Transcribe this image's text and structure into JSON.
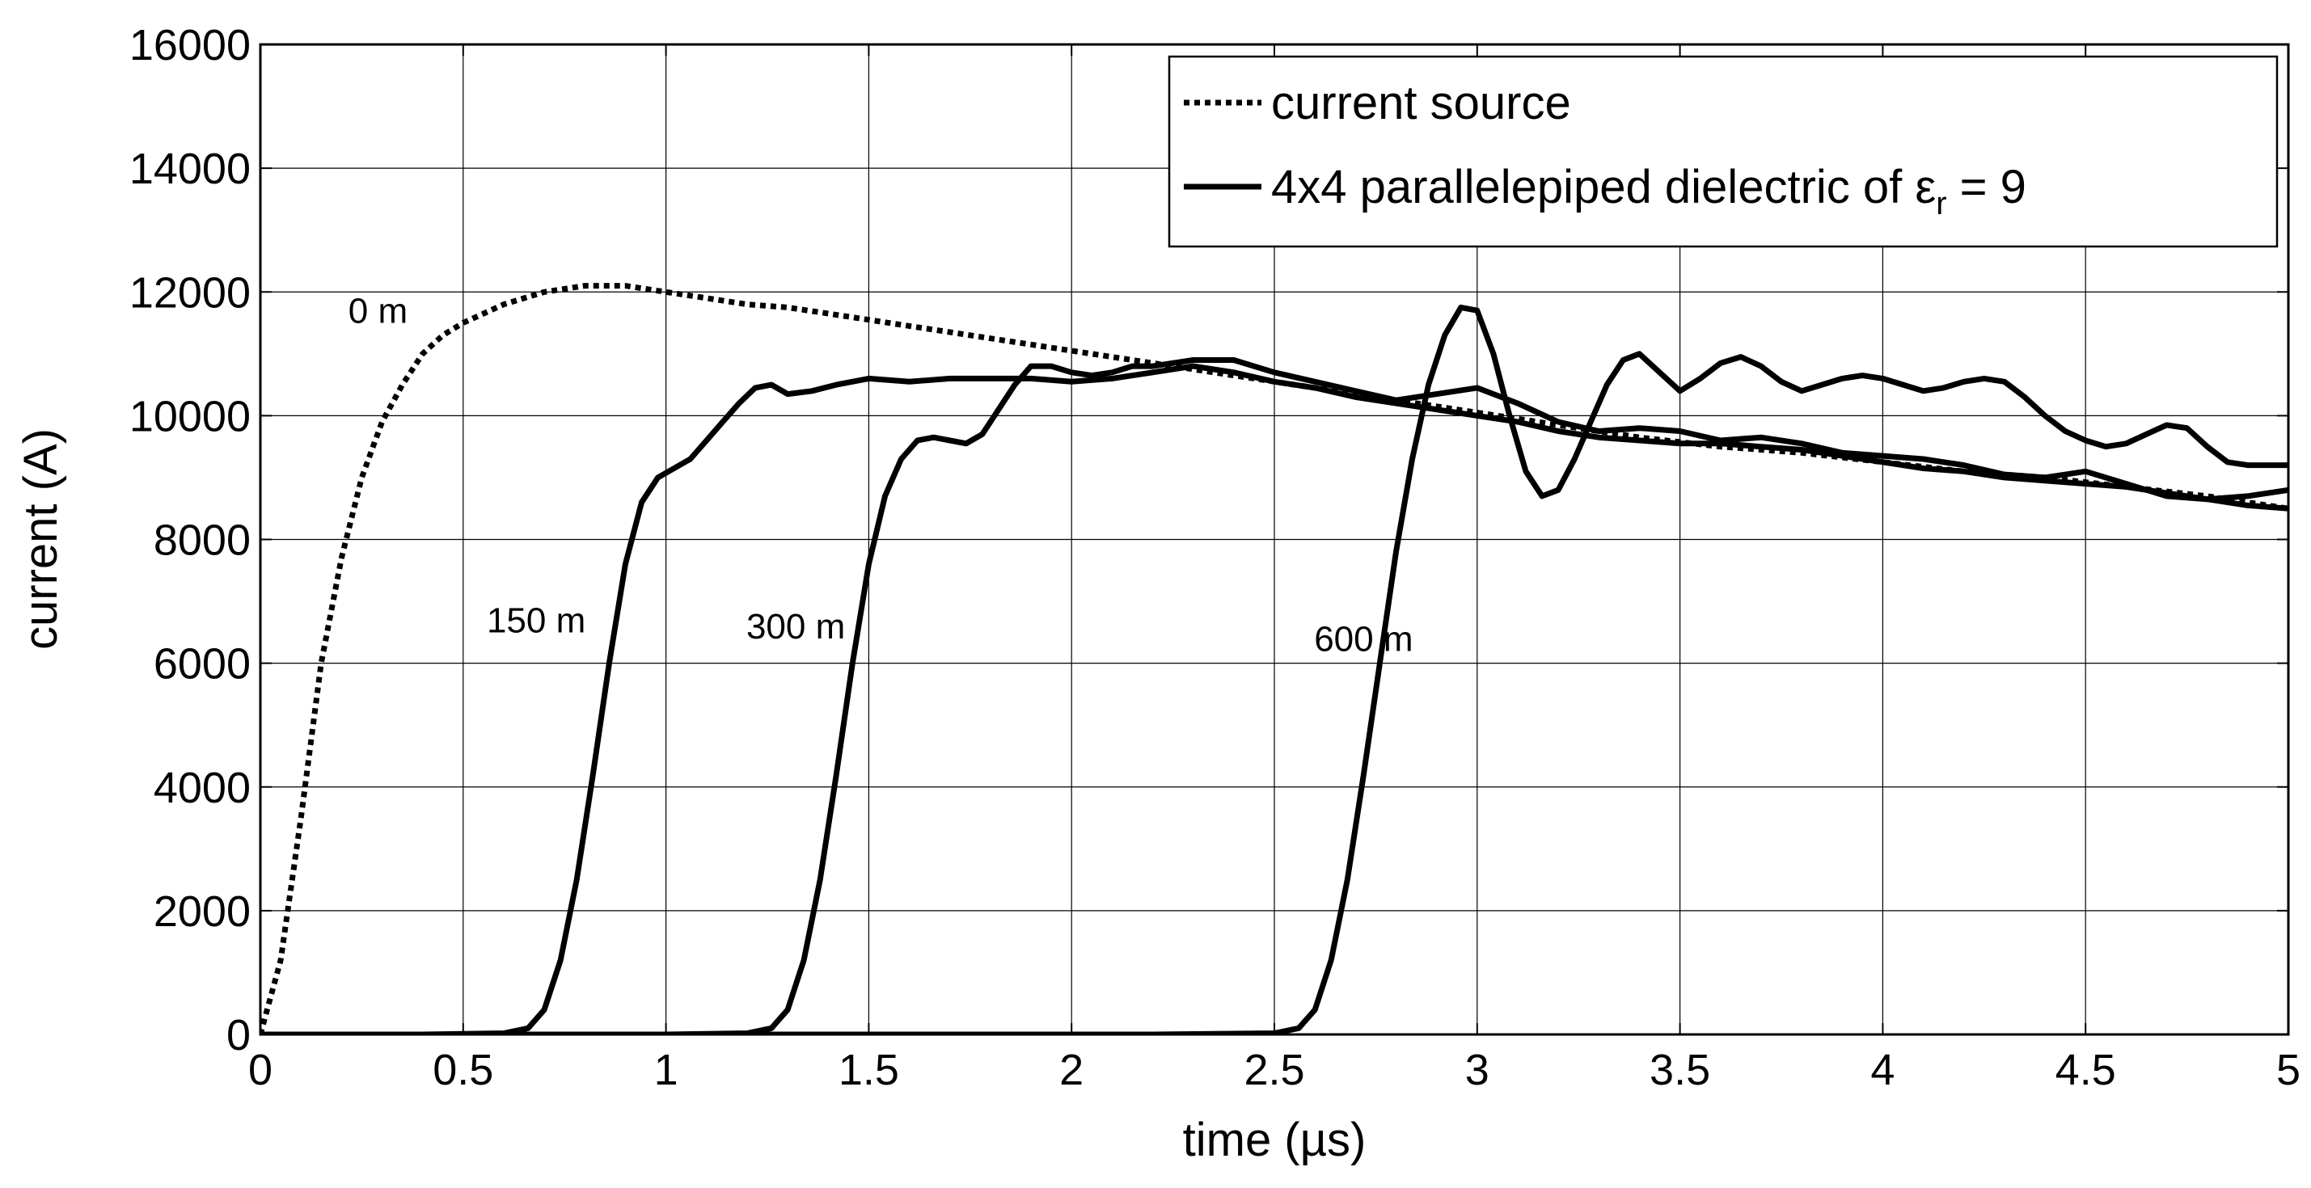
{
  "chart_data": {
    "type": "line",
    "xlabel": "time (µs)",
    "ylabel": "current (A)",
    "xlim": [
      0,
      5
    ],
    "ylim": [
      0,
      16000
    ],
    "xticks": [
      "0",
      "0.5",
      "1",
      "1.5",
      "2",
      "2.5",
      "3",
      "3.5",
      "4",
      "4.5",
      "5"
    ],
    "yticks": [
      "0",
      "2000",
      "4000",
      "6000",
      "8000",
      "10000",
      "12000",
      "14000",
      "16000"
    ],
    "grid": true,
    "legend_position": "top-right",
    "legend": {
      "entries": [
        {
          "label": "current source",
          "style": "dotted"
        },
        {
          "label_main": "4x4 parallelepiped dielectric of ",
          "label_symbol": "ε",
          "label_sub": "r",
          "label_tail": " = 9",
          "style": "solid"
        }
      ]
    },
    "annotations": [
      {
        "text": "0 m",
        "x": 0.29,
        "y": 11500
      },
      {
        "text": "150 m",
        "x": 0.68,
        "y": 6500
      },
      {
        "text": "300 m",
        "x": 1.32,
        "y": 6400
      },
      {
        "text": "600 m",
        "x": 2.72,
        "y": 6200
      }
    ],
    "series": [
      {
        "name": "current source",
        "style": "dotted",
        "x": [
          0,
          0.05,
          0.1,
          0.15,
          0.2,
          0.25,
          0.3,
          0.35,
          0.4,
          0.45,
          0.5,
          0.6,
          0.7,
          0.8,
          0.9,
          1.0,
          1.1,
          1.2,
          1.3,
          1.4,
          1.5,
          1.6,
          1.7,
          1.8,
          1.9,
          2.0,
          2.2,
          2.4,
          2.6,
          2.8,
          3.0,
          3.2,
          3.4,
          3.6,
          3.8,
          4.0,
          4.2,
          4.4,
          4.6,
          4.8,
          5.0
        ],
        "y": [
          0,
          1200,
          3500,
          6000,
          7700,
          9000,
          9900,
          10500,
          11000,
          11300,
          11500,
          11800,
          12000,
          12100,
          12100,
          12000,
          11900,
          11800,
          11750,
          11650,
          11550,
          11450,
          11350,
          11250,
          11150,
          11050,
          10850,
          10650,
          10450,
          10250,
          10050,
          9850,
          9650,
          9500,
          9400,
          9250,
          9100,
          9000,
          8850,
          8700,
          8500
        ]
      },
      {
        "name": "150 m",
        "style": "solid",
        "x": [
          0,
          0.4,
          0.6,
          0.66,
          0.7,
          0.74,
          0.78,
          0.82,
          0.86,
          0.9,
          0.94,
          0.98,
          1.02,
          1.06,
          1.1,
          1.14,
          1.18,
          1.22,
          1.26,
          1.3,
          1.36,
          1.42,
          1.5,
          1.6,
          1.7,
          1.8,
          1.9,
          2.0,
          2.1,
          2.2,
          2.3,
          2.4,
          2.5,
          2.6,
          2.7,
          2.8,
          2.9,
          3.0,
          3.1,
          3.2,
          3.3,
          3.4,
          3.5,
          3.6,
          3.7,
          3.8,
          3.9,
          4.0,
          4.1,
          4.2,
          4.3,
          4.4,
          4.5,
          4.6,
          4.7,
          4.8,
          4.9,
          5.0
        ],
        "y": [
          0,
          0,
          20,
          100,
          400,
          1200,
          2500,
          4200,
          6000,
          7600,
          8600,
          9000,
          9150,
          9300,
          9600,
          9900,
          10200,
          10450,
          10500,
          10350,
          10400,
          10500,
          10600,
          10550,
          10600,
          10600,
          10600,
          10550,
          10600,
          10700,
          10800,
          10700,
          10550,
          10450,
          10300,
          10200,
          10100,
          10000,
          9900,
          9750,
          9650,
          9600,
          9550,
          9550,
          9500,
          9450,
          9350,
          9250,
          9150,
          9100,
          9000,
          8950,
          8900,
          8850,
          8750,
          8650,
          8550,
          8500
        ]
      },
      {
        "name": "300 m",
        "style": "solid",
        "x": [
          0,
          1.0,
          1.2,
          1.26,
          1.3,
          1.34,
          1.38,
          1.42,
          1.46,
          1.5,
          1.54,
          1.58,
          1.62,
          1.66,
          1.7,
          1.74,
          1.78,
          1.82,
          1.86,
          1.9,
          1.95,
          2.0,
          2.05,
          2.1,
          2.15,
          2.2,
          2.3,
          2.4,
          2.5,
          2.6,
          2.7,
          2.8,
          2.9,
          3.0,
          3.1,
          3.2,
          3.3,
          3.4,
          3.5,
          3.6,
          3.7,
          3.8,
          3.9,
          4.0,
          4.1,
          4.2,
          4.3,
          4.4,
          4.5,
          4.6,
          4.7,
          4.8,
          4.9,
          5.0
        ],
        "y": [
          0,
          0,
          20,
          100,
          400,
          1200,
          2500,
          4200,
          6000,
          7600,
          8700,
          9300,
          9600,
          9650,
          9600,
          9550,
          9700,
          10100,
          10500,
          10800,
          10800,
          10700,
          10650,
          10700,
          10800,
          10800,
          10900,
          10900,
          10700,
          10550,
          10400,
          10250,
          10350,
          10450,
          10200,
          9900,
          9750,
          9800,
          9750,
          9600,
          9650,
          9550,
          9400,
          9350,
          9300,
          9200,
          9050,
          9000,
          9100,
          8900,
          8700,
          8650,
          8700,
          8800
        ]
      },
      {
        "name": "600 m",
        "style": "solid",
        "x": [
          0,
          2.2,
          2.5,
          2.56,
          2.6,
          2.64,
          2.68,
          2.72,
          2.76,
          2.8,
          2.84,
          2.88,
          2.92,
          2.96,
          3.0,
          3.04,
          3.08,
          3.12,
          3.16,
          3.2,
          3.24,
          3.28,
          3.32,
          3.36,
          3.4,
          3.45,
          3.5,
          3.55,
          3.6,
          3.65,
          3.7,
          3.75,
          3.8,
          3.85,
          3.9,
          3.95,
          4.0,
          4.05,
          4.1,
          4.15,
          4.2,
          4.25,
          4.3,
          4.35,
          4.4,
          4.45,
          4.5,
          4.55,
          4.6,
          4.65,
          4.7,
          4.75,
          4.8,
          4.85,
          4.9,
          4.95,
          5.0
        ],
        "y": [
          0,
          0,
          20,
          100,
          400,
          1200,
          2500,
          4200,
          6000,
          7800,
          9300,
          10500,
          11300,
          11750,
          11700,
          11000,
          10000,
          9100,
          8700,
          8800,
          9300,
          9900,
          10500,
          10900,
          11000,
          10700,
          10400,
          10600,
          10850,
          10950,
          10800,
          10550,
          10400,
          10500,
          10600,
          10650,
          10600,
          10500,
          10400,
          10450,
          10550,
          10600,
          10550,
          10300,
          10000,
          9750,
          9600,
          9500,
          9550,
          9700,
          9850,
          9800,
          9500,
          9250,
          9200,
          9200,
          9200
        ]
      }
    ]
  }
}
